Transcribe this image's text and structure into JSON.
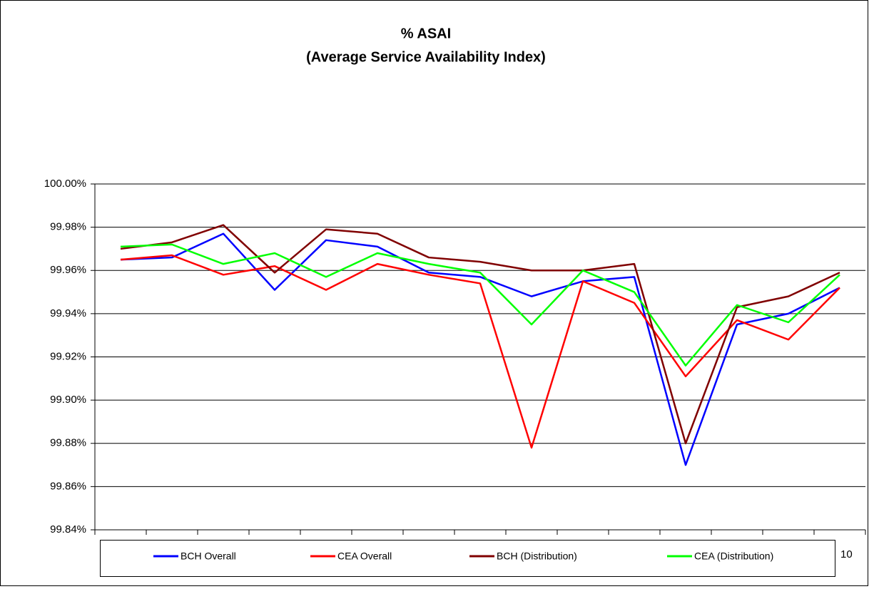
{
  "chart_data": {
    "type": "line",
    "title": "% ASAI",
    "subtitle": "(Average Service Availability Index)",
    "categories": [
      null,
      null,
      null,
      null,
      null,
      null,
      null,
      null,
      null,
      null,
      null,
      null,
      null,
      null,
      null
    ],
    "series": [
      {
        "name": "BCH Overall",
        "color": "#0000ff",
        "values": [
          99.965,
          99.966,
          99.977,
          99.951,
          99.974,
          99.971,
          99.959,
          99.957,
          99.948,
          99.955,
          99.957,
          99.87,
          99.935,
          99.94,
          99.952
        ]
      },
      {
        "name": "CEA Overall",
        "color": "#ff0000",
        "values": [
          99.965,
          99.967,
          99.958,
          99.962,
          99.951,
          99.963,
          99.958,
          99.954,
          99.878,
          99.955,
          99.945,
          99.911,
          99.937,
          99.928,
          99.952
        ]
      },
      {
        "name": "BCH (Distribution)",
        "color": "#800000",
        "values": [
          99.97,
          99.973,
          99.981,
          99.959,
          99.979,
          99.977,
          99.966,
          99.964,
          99.96,
          99.96,
          99.963,
          99.88,
          99.943,
          99.948,
          99.959
        ]
      },
      {
        "name": "CEA (Distribution)",
        "color": "#00ff00",
        "values": [
          99.971,
          99.972,
          99.963,
          99.968,
          99.957,
          99.968,
          99.963,
          99.959,
          99.935,
          99.96,
          99.95,
          99.916,
          99.944,
          99.936,
          99.958
        ]
      }
    ],
    "ylim": [
      99.84,
      100
    ],
    "yticks": [
      {
        "value": 99.84,
        "label": "99.84%"
      },
      {
        "value": 99.86,
        "label": "99.86%"
      },
      {
        "value": 99.88,
        "label": "99.88%"
      },
      {
        "value": 99.9,
        "label": "99.90%"
      },
      {
        "value": 99.92,
        "label": "99.92%"
      },
      {
        "value": 99.94,
        "label": "99.94%"
      },
      {
        "value": 99.96,
        "label": "99.96%"
      },
      {
        "value": 99.98,
        "label": "99.98%"
      },
      {
        "value": 100,
        "label": "100.00%"
      }
    ],
    "grid": true,
    "annotations": [
      "10"
    ]
  }
}
